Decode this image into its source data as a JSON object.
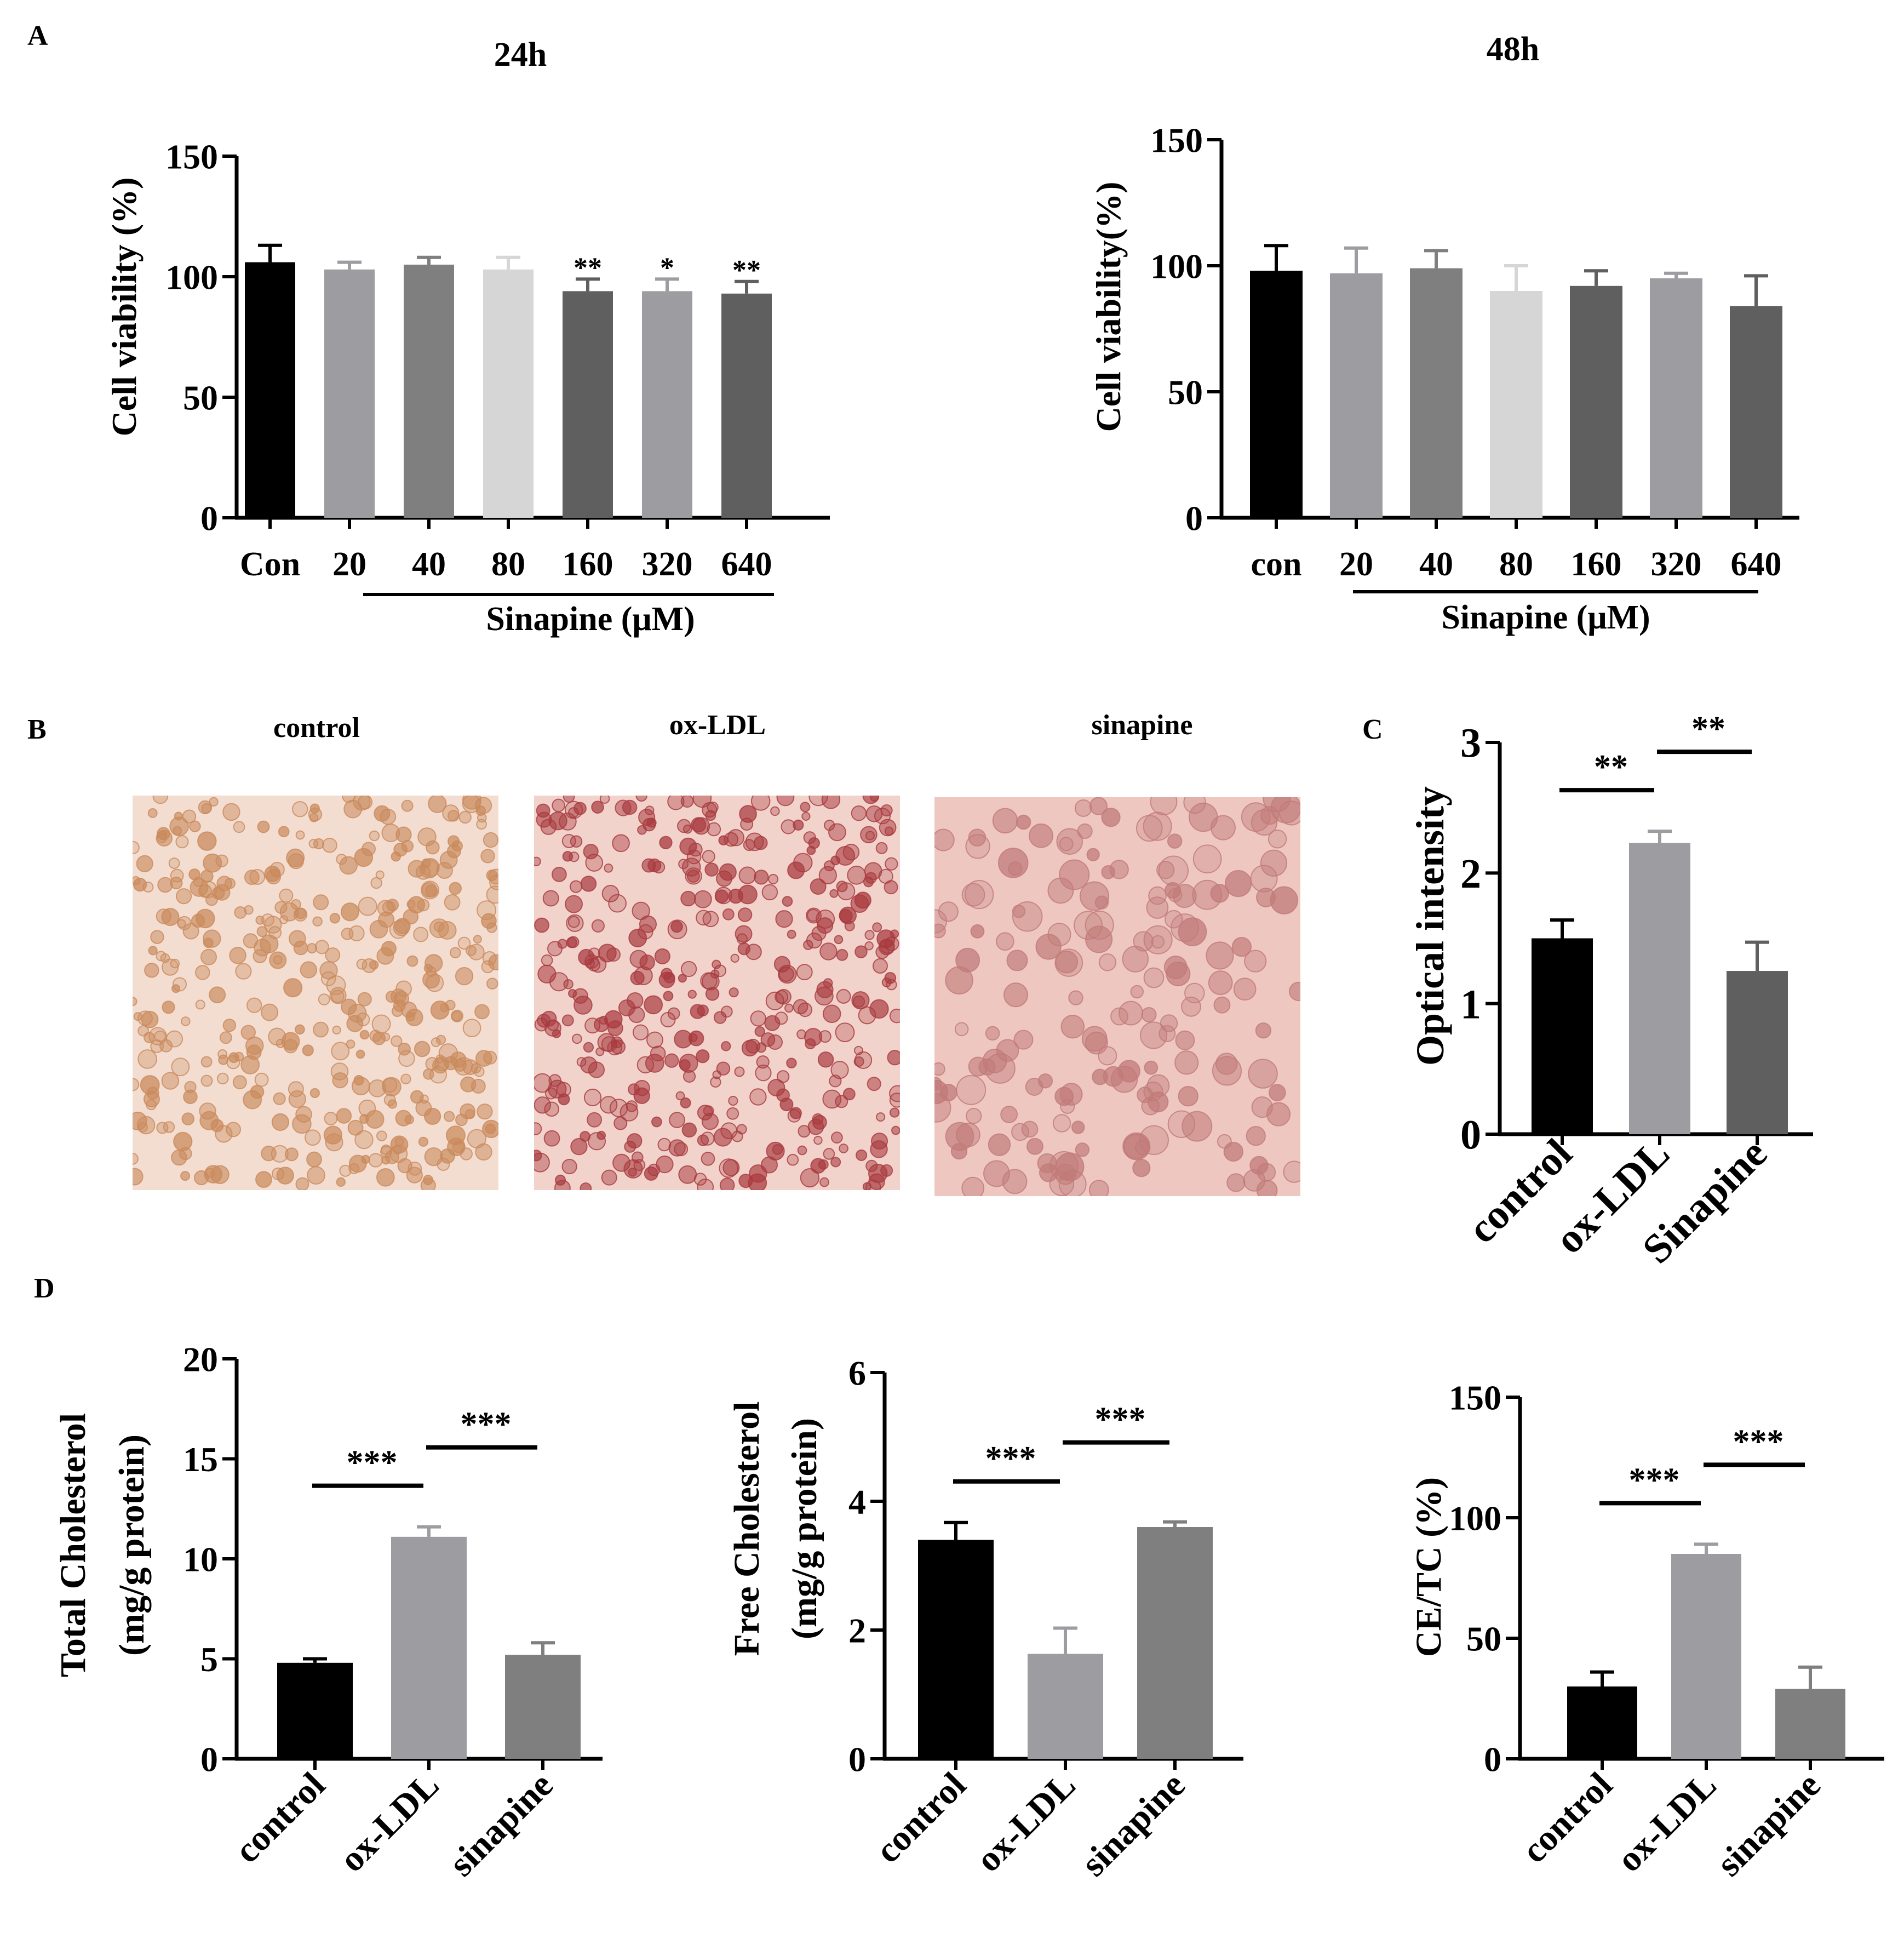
{
  "panel_labels": {
    "A": "A",
    "B": "B",
    "C": "C",
    "D": "D"
  },
  "colors": {
    "black": "#000000",
    "mid_gray": "#9d9ca1",
    "dark_gray": "#7f7f7f",
    "light_gray": "#d6d6d6",
    "darker_gray": "#5f5f5f"
  },
  "chart_data": [
    {
      "id": "A1",
      "type": "bar",
      "title": "24h",
      "ylabel": "Cell viability (%)",
      "xlabel": "Sinapine (μM)",
      "ylim": [
        0,
        150
      ],
      "yticks": [
        "0",
        "50",
        "100",
        "150"
      ],
      "categories": [
        "Con",
        "20",
        "40",
        "80",
        "160",
        "320",
        "640"
      ],
      "values": [
        106,
        103,
        105,
        103,
        94,
        94,
        93
      ],
      "errors": [
        7,
        3,
        3,
        5,
        5,
        5,
        5
      ],
      "bar_colors": [
        "#000000",
        "#9d9ca1",
        "#7f7f7f",
        "#d6d6d6",
        "#5f5f5f",
        "#9d9ca1",
        "#5f5f5f"
      ],
      "significance": [
        "",
        "",
        "",
        "",
        "**",
        "*",
        "**"
      ]
    },
    {
      "id": "A2",
      "type": "bar",
      "title": "48h",
      "ylabel": "Cell viability(%)",
      "xlabel": "Sinapine (μM)",
      "ylim": [
        0,
        150
      ],
      "yticks": [
        "0",
        "50",
        "100",
        "150"
      ],
      "categories": [
        "con",
        "20",
        "40",
        "80",
        "160",
        "320",
        "640"
      ],
      "values": [
        98,
        97,
        99,
        90,
        92,
        95,
        84
      ],
      "errors": [
        10,
        10,
        7,
        10,
        6,
        2,
        12
      ],
      "bar_colors": [
        "#000000",
        "#9d9ca1",
        "#7f7f7f",
        "#d6d6d6",
        "#5f5f5f",
        "#9d9ca1",
        "#5f5f5f"
      ],
      "significance": [
        "",
        "",
        "",
        "",
        "",
        "",
        ""
      ]
    },
    {
      "id": "C",
      "type": "bar",
      "ylabel": "Optical intensity",
      "ylim": [
        0,
        3
      ],
      "yticks": [
        "0",
        "1",
        "2",
        "3"
      ],
      "categories": [
        "control",
        "ox-LDL",
        "Sinapine"
      ],
      "values": [
        1.5,
        2.23,
        1.25
      ],
      "errors": [
        0.14,
        0.09,
        0.22
      ],
      "bar_colors": [
        "#000000",
        "#9d9ca1",
        "#5f5f5f"
      ],
      "brackets": [
        {
          "from": 0,
          "to": 1,
          "label": "**"
        },
        {
          "from": 1,
          "to": 2,
          "label": "**"
        }
      ]
    },
    {
      "id": "D1",
      "type": "bar",
      "ylabel": "Total Cholesterol",
      "ylabel2": "(mg/g protein)",
      "ylim": [
        0,
        20
      ],
      "yticks": [
        "0",
        "5",
        "10",
        "15",
        "20"
      ],
      "categories": [
        "control",
        "ox-LDL",
        "sinapine"
      ],
      "values": [
        4.8,
        11.1,
        5.2
      ],
      "errors": [
        0.2,
        0.5,
        0.6
      ],
      "bar_colors": [
        "#000000",
        "#9d9ca1",
        "#7f7f7f"
      ],
      "brackets": [
        {
          "from": 0,
          "to": 1,
          "label": "***"
        },
        {
          "from": 1,
          "to": 2,
          "label": "***"
        }
      ]
    },
    {
      "id": "D2",
      "type": "bar",
      "ylabel": "Free Cholesterol",
      "ylabel2": "(mg/g protein)",
      "ylim": [
        0,
        6
      ],
      "yticks": [
        "0",
        "2",
        "4",
        "6"
      ],
      "categories": [
        "control",
        "ox-LDL",
        "sinapine"
      ],
      "values": [
        3.4,
        1.63,
        3.6
      ],
      "errors": [
        0.27,
        0.4,
        0.08
      ],
      "bar_colors": [
        "#000000",
        "#9d9ca1",
        "#7f7f7f"
      ],
      "brackets": [
        {
          "from": 0,
          "to": 1,
          "label": "***"
        },
        {
          "from": 1,
          "to": 2,
          "label": "***"
        }
      ]
    },
    {
      "id": "D3",
      "type": "bar",
      "ylabel": "CE/TC (%)",
      "ylim": [
        0,
        150
      ],
      "yticks": [
        "0",
        "50",
        "100",
        "150"
      ],
      "categories": [
        "control",
        "ox-LDL",
        "sinapine"
      ],
      "values": [
        30,
        85,
        29
      ],
      "errors": [
        6,
        4,
        9
      ],
      "bar_colors": [
        "#000000",
        "#9d9ca1",
        "#7f7f7f"
      ],
      "brackets": [
        {
          "from": 0,
          "to": 1,
          "label": "***"
        },
        {
          "from": 1,
          "to": 2,
          "label": "***"
        }
      ]
    }
  ],
  "micrographs": {
    "titles": [
      "control",
      "ox-LDL",
      "sinapine"
    ],
    "styles": [
      {
        "background": "#f3ddd0",
        "cell_color": "#c98a5c",
        "density": "high"
      },
      {
        "background": "#f2d3cb",
        "cell_color": "#a83a3f",
        "density": "high"
      },
      {
        "background": "#eec7c1",
        "cell_color": "#c07a78",
        "density": "medium"
      }
    ]
  }
}
